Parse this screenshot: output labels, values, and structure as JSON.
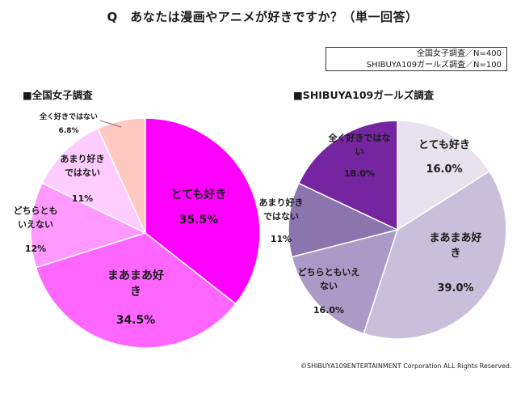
{
  "title": "Q　あなたは漫画やアニメが好きですか？（単一回答）",
  "sample_note": [
    "全国女子調査／N=400",
    "SHIBUYA109ガールズ調査／N=100"
  ],
  "copyright": "©SHIBUYA109ENTERTAINMENT  Corporation  ALL Rights Reserved.",
  "chart_data": [
    {
      "type": "pie",
      "title": "■全国女子調査",
      "slices": [
        {
          "label_lines": [
            "とても好き"
          ],
          "value_label": "35.5%",
          "value": 35.5,
          "color": "#ff00ff"
        },
        {
          "label_lines": [
            "まあまあ好",
            "き"
          ],
          "value_label": "34.5%",
          "value": 34.5,
          "color": "#ff66ff"
        },
        {
          "label_lines": [
            "どちらとも",
            "いえない"
          ],
          "value_label": "12%",
          "value": 12,
          "color": "#ff99ff"
        },
        {
          "label_lines": [
            "あまり好き",
            "ではない"
          ],
          "value_label": "11%",
          "value": 11,
          "color": "#ffccff"
        },
        {
          "label_lines": [
            "全く好きではない"
          ],
          "value_label": "6.8%",
          "value": 6.8,
          "color": "#ffc8c0"
        }
      ]
    },
    {
      "type": "pie",
      "title": "■SHIBUYA109ガールズ調査",
      "slices": [
        {
          "label_lines": [
            "とても好き"
          ],
          "value_label": "16.0%",
          "value": 16.0,
          "color": "#e8e2ee"
        },
        {
          "label_lines": [
            "まあまあ好",
            "き"
          ],
          "value_label": "39.0%",
          "value": 39.0,
          "color": "#c9bfda"
        },
        {
          "label_lines": [
            "どちらともいえ",
            "ない"
          ],
          "value_label": "16.0%",
          "value": 16.0,
          "color": "#ab9ac5"
        },
        {
          "label_lines": [
            "あまり好き",
            "ではない"
          ],
          "value_label": "11%",
          "value": 11,
          "color": "#8c74ae"
        },
        {
          "label_lines": [
            "全く好きではな",
            "い"
          ],
          "value_label": "18.0%",
          "value": 18.0,
          "color": "#74259f"
        }
      ]
    }
  ]
}
